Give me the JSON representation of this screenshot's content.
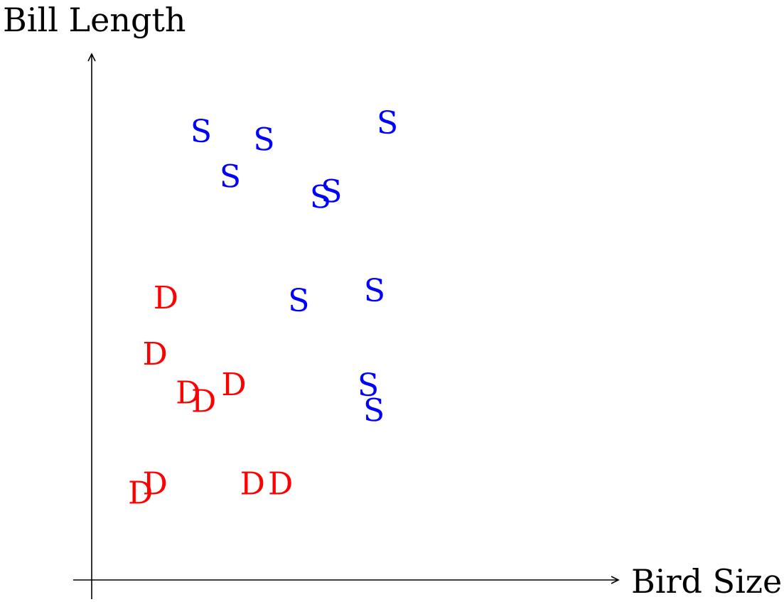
{
  "chart_data": {
    "type": "scatter",
    "title": "",
    "xlabel": "Bird Size",
    "ylabel": "Bill Length",
    "grid": false,
    "legend": "none",
    "axis_ticks": false,
    "series": [
      {
        "marker": "S",
        "color": "#0000ff",
        "points": [
          {
            "x": 2.11,
            "y": 8.64
          },
          {
            "x": 3.32,
            "y": 8.48
          },
          {
            "x": 2.67,
            "y": 7.77
          },
          {
            "x": 4.62,
            "y": 7.48
          },
          {
            "x": 4.41,
            "y": 7.37
          },
          {
            "x": 5.7,
            "y": 8.8
          },
          {
            "x": 3.99,
            "y": 5.38
          },
          {
            "x": 5.45,
            "y": 5.57
          },
          {
            "x": 5.33,
            "y": 3.75
          },
          {
            "x": 5.44,
            "y": 3.26
          }
        ]
      },
      {
        "marker": "D",
        "color": "#ff0000",
        "points": [
          {
            "x": 1.43,
            "y": 5.43
          },
          {
            "x": 1.22,
            "y": 4.35
          },
          {
            "x": 1.86,
            "y": 3.6
          },
          {
            "x": 2.16,
            "y": 3.44
          },
          {
            "x": 2.74,
            "y": 3.76
          },
          {
            "x": 0.94,
            "y": 1.67
          },
          {
            "x": 1.22,
            "y": 1.85
          },
          {
            "x": 3.1,
            "y": 1.85
          },
          {
            "x": 3.64,
            "y": 1.85
          }
        ]
      }
    ]
  }
}
